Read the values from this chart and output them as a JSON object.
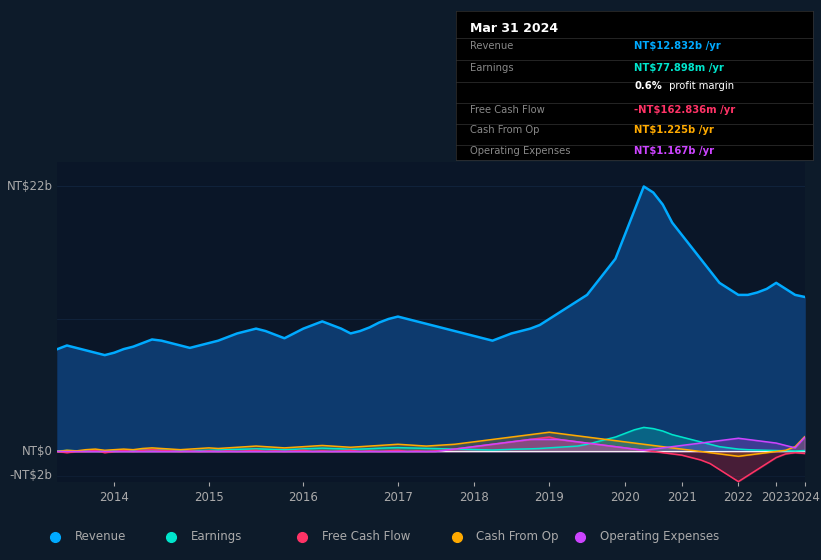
{
  "background_color": "#0d1b2a",
  "plot_bg_color": "#0a1628",
  "grid_color": "#1e3a5f",
  "text_color": "#aaaaaa",
  "ylabel_22b": "NT$22b",
  "ylabel_0": "NT$0",
  "ylabel_neg2b": "-NT$2b",
  "x_labels": [
    "2014",
    "2015",
    "2016",
    "2017",
    "2018",
    "2019",
    "2020",
    "2021",
    "2022",
    "2023",
    "2024"
  ],
  "revenue_color": "#00aaff",
  "earnings_color": "#00e5cc",
  "fcf_color": "#ff3366",
  "cashfromop_color": "#ffaa00",
  "opex_color": "#cc44ff",
  "revenue_fill_color": "#0d3a6e",
  "legend_items": [
    {
      "label": "Revenue",
      "color": "#00aaff"
    },
    {
      "label": "Earnings",
      "color": "#00e5cc"
    },
    {
      "label": "Free Cash Flow",
      "color": "#ff3366"
    },
    {
      "label": "Cash From Op",
      "color": "#ffaa00"
    },
    {
      "label": "Operating Expenses",
      "color": "#cc44ff"
    }
  ],
  "tooltip_title": "Mar 31 2024",
  "revenue": [
    8.5,
    8.8,
    8.6,
    8.4,
    8.2,
    8.0,
    8.2,
    8.5,
    8.7,
    9.0,
    9.3,
    9.2,
    9.0,
    8.8,
    8.6,
    8.8,
    9.0,
    9.2,
    9.5,
    9.8,
    10.0,
    10.2,
    10.0,
    9.7,
    9.4,
    9.8,
    10.2,
    10.5,
    10.8,
    10.5,
    10.2,
    9.8,
    10.0,
    10.3,
    10.7,
    11.0,
    11.2,
    11.0,
    10.8,
    10.6,
    10.4,
    10.2,
    10.0,
    9.8,
    9.6,
    9.4,
    9.2,
    9.5,
    9.8,
    10.0,
    10.2,
    10.5,
    11.0,
    11.5,
    12.0,
    12.5,
    13.0,
    14.0,
    15.0,
    16.0,
    18.0,
    20.0,
    22.0,
    21.5,
    20.5,
    19.0,
    18.0,
    17.0,
    16.0,
    15.0,
    14.0,
    13.5,
    13.0,
    13.0,
    13.2,
    13.5,
    14.0,
    13.5,
    13.0,
    12.832
  ],
  "earnings": [
    0.05,
    0.08,
    0.06,
    0.04,
    0.02,
    0.01,
    0.03,
    0.06,
    0.09,
    0.12,
    0.15,
    0.13,
    0.1,
    0.08,
    0.06,
    0.08,
    0.1,
    0.12,
    0.15,
    0.18,
    0.2,
    0.22,
    0.2,
    0.17,
    0.14,
    0.18,
    0.22,
    0.25,
    0.28,
    0.25,
    0.22,
    0.18,
    0.2,
    0.23,
    0.27,
    0.3,
    0.32,
    0.3,
    0.28,
    0.26,
    0.24,
    0.22,
    0.2,
    0.18,
    0.16,
    0.14,
    0.12,
    0.15,
    0.18,
    0.2,
    0.22,
    0.25,
    0.3,
    0.35,
    0.4,
    0.45,
    0.6,
    0.8,
    1.0,
    1.2,
    1.5,
    1.8,
    2.0,
    1.9,
    1.7,
    1.4,
    1.2,
    1.0,
    0.8,
    0.6,
    0.4,
    0.3,
    0.2,
    0.15,
    0.12,
    0.1,
    0.08,
    0.06,
    0.04,
    0.078
  ],
  "fcf": [
    0.0,
    -0.1,
    0.0,
    0.0,
    0.1,
    -0.1,
    0.0,
    0.1,
    0.0,
    0.1,
    0.15,
    0.1,
    0.05,
    0.0,
    0.05,
    0.0,
    0.05,
    0.0,
    0.05,
    0.0,
    0.05,
    0.1,
    0.0,
    0.05,
    0.0,
    0.05,
    0.1,
    0.0,
    0.05,
    0.0,
    0.05,
    0.1,
    0.0,
    0.05,
    0.0,
    0.05,
    0.1,
    0.0,
    0.05,
    0.0,
    0.05,
    0.1,
    0.2,
    0.3,
    0.4,
    0.5,
    0.6,
    0.7,
    0.8,
    0.9,
    1.0,
    1.1,
    1.2,
    1.0,
    0.9,
    0.8,
    0.7,
    0.6,
    0.5,
    0.4,
    0.3,
    0.2,
    0.1,
    0.0,
    -0.1,
    -0.2,
    -0.3,
    -0.5,
    -0.7,
    -1.0,
    -1.5,
    -2.0,
    -2.5,
    -2.0,
    -1.5,
    -1.0,
    -0.5,
    -0.2,
    -0.1,
    -0.163
  ],
  "cashfromop": [
    0.0,
    0.1,
    0.05,
    0.15,
    0.2,
    0.1,
    0.15,
    0.2,
    0.15,
    0.25,
    0.3,
    0.25,
    0.2,
    0.15,
    0.2,
    0.25,
    0.3,
    0.25,
    0.3,
    0.35,
    0.4,
    0.45,
    0.4,
    0.35,
    0.3,
    0.35,
    0.4,
    0.45,
    0.5,
    0.45,
    0.4,
    0.35,
    0.4,
    0.45,
    0.5,
    0.55,
    0.6,
    0.55,
    0.5,
    0.45,
    0.5,
    0.55,
    0.6,
    0.7,
    0.8,
    0.9,
    1.0,
    1.1,
    1.2,
    1.3,
    1.4,
    1.5,
    1.6,
    1.5,
    1.4,
    1.3,
    1.2,
    1.1,
    1.0,
    0.9,
    0.8,
    0.7,
    0.6,
    0.5,
    0.4,
    0.3,
    0.2,
    0.1,
    0.0,
    -0.1,
    -0.2,
    -0.3,
    -0.4,
    -0.3,
    -0.2,
    -0.1,
    0.0,
    0.1,
    0.4,
    1.225
  ],
  "opex": [
    0.0,
    0.0,
    0.0,
    0.0,
    0.0,
    0.0,
    0.0,
    0.0,
    0.0,
    0.0,
    0.0,
    0.0,
    0.0,
    0.0,
    0.0,
    0.0,
    0.0,
    0.0,
    0.0,
    0.0,
    0.0,
    0.0,
    0.0,
    0.0,
    0.0,
    0.0,
    0.0,
    0.0,
    0.0,
    0.0,
    0.0,
    0.0,
    0.0,
    0.0,
    0.0,
    0.0,
    0.0,
    0.0,
    0.0,
    0.0,
    0.0,
    0.1,
    0.2,
    0.3,
    0.4,
    0.5,
    0.6,
    0.7,
    0.8,
    0.9,
    1.0,
    1.0,
    1.0,
    1.0,
    0.9,
    0.8,
    0.7,
    0.6,
    0.5,
    0.4,
    0.3,
    0.2,
    0.1,
    0.2,
    0.3,
    0.4,
    0.5,
    0.6,
    0.7,
    0.8,
    0.9,
    1.0,
    1.1,
    1.0,
    0.9,
    0.8,
    0.7,
    0.5,
    0.3,
    1.167
  ],
  "year_tick_indices": [
    6,
    16,
    26,
    36,
    44,
    52,
    60,
    66,
    72,
    76,
    79
  ]
}
